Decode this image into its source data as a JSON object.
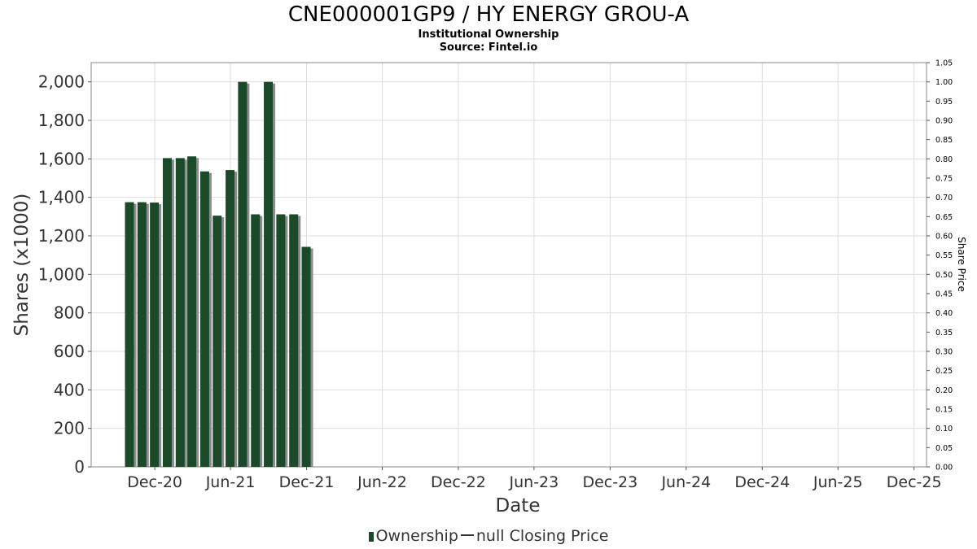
{
  "header": {
    "title": "CNE000001GP9 / HY ENERGY GROU-A",
    "subtitle": "Institutional Ownership",
    "source": "Source: Fintel.io"
  },
  "legend": {
    "ownership_label": "Ownership",
    "price_label": "null Closing Price"
  },
  "colors": {
    "bar": "#1b4a2a",
    "bar_shadow": "#8c8c8c",
    "grid": "#dddddd",
    "frame": "#888888"
  },
  "chart_data": {
    "type": "bar",
    "xlabel": "Date",
    "ylabel": "Shares (x1000)",
    "y2label": "Share Price",
    "ylim": [
      0,
      2100
    ],
    "y2lim": [
      0,
      1.05
    ],
    "yticks": [
      0,
      200,
      400,
      600,
      800,
      1000,
      1200,
      1400,
      1600,
      1800,
      2000
    ],
    "ytick_labels": [
      "0",
      "200",
      "400",
      "600",
      "800",
      "1,000",
      "1,200",
      "1,400",
      "1,600",
      "1,800",
      "2,000"
    ],
    "y2ticks": [
      "0.00",
      "0.05",
      "0.10",
      "0.15",
      "0.20",
      "0.25",
      "0.30",
      "0.35",
      "0.40",
      "0.45",
      "0.50",
      "0.55",
      "0.60",
      "0.65",
      "0.70",
      "0.75",
      "0.80",
      "0.85",
      "0.90",
      "0.95",
      "1.00",
      "1.05"
    ],
    "xlim": [
      "2020-07-01",
      "2025-12-31"
    ],
    "xticks": [
      {
        "date": "2020-12-01",
        "label": "Dec-20"
      },
      {
        "date": "2021-06-01",
        "label": "Jun-21"
      },
      {
        "date": "2021-12-01",
        "label": "Dec-21"
      },
      {
        "date": "2022-06-01",
        "label": "Jun-22"
      },
      {
        "date": "2022-12-01",
        "label": "Dec-22"
      },
      {
        "date": "2023-06-01",
        "label": "Jun-23"
      },
      {
        "date": "2023-12-01",
        "label": "Dec-23"
      },
      {
        "date": "2024-06-01",
        "label": "Jun-24"
      },
      {
        "date": "2024-12-01",
        "label": "Dec-24"
      },
      {
        "date": "2025-06-01",
        "label": "Jun-25"
      },
      {
        "date": "2025-12-01",
        "label": "Dec-25"
      }
    ],
    "series": [
      {
        "name": "Ownership",
        "x": [
          "2020-10-01",
          "2020-10-31",
          "2020-11-30",
          "2020-12-31",
          "2021-01-31",
          "2021-02-28",
          "2021-03-31",
          "2021-04-30",
          "2021-05-31",
          "2021-06-30",
          "2021-07-31",
          "2021-08-31",
          "2021-09-30",
          "2021-10-31",
          "2021-11-30"
        ],
        "values": [
          1375,
          1375,
          1373,
          1604,
          1604,
          1613,
          1535,
          1305,
          1542,
          2000,
          1312,
          2000,
          1312,
          1312,
          1143
        ]
      }
    ],
    "grid": true
  }
}
